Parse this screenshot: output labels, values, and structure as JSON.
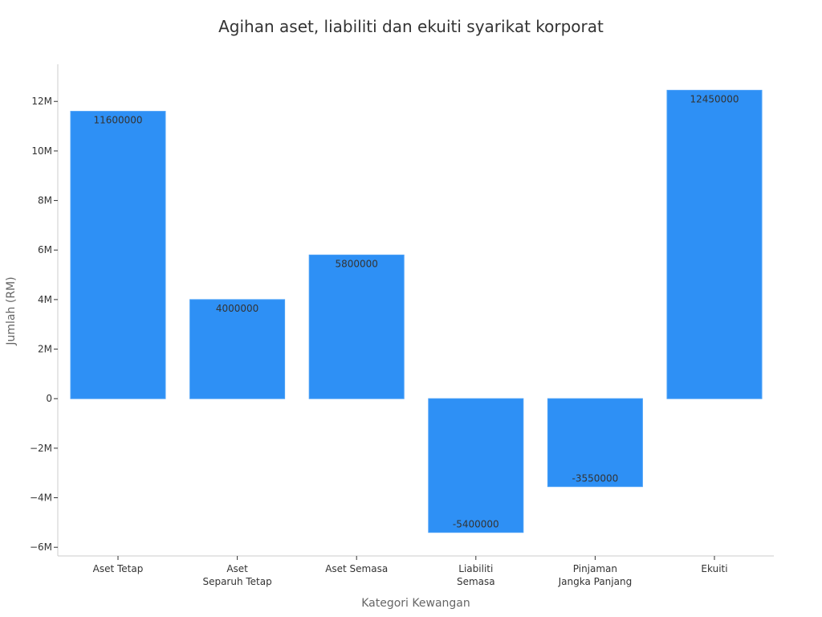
{
  "chart_data": {
    "type": "bar",
    "title": "Agihan aset, liabiliti dan ekuiti syarikat korporat",
    "xlabel": "Kategori Kewangan",
    "ylabel": "Jumlah (RM)",
    "categories": [
      [
        "Aset Tetap"
      ],
      [
        "Aset",
        "Separuh Tetap"
      ],
      [
        "Aset Semasa"
      ],
      [
        "Liabiliti",
        "Semasa"
      ],
      [
        "Pinjaman",
        "Jangka Panjang"
      ],
      [
        "Ekuiti"
      ]
    ],
    "values": [
      11600000,
      4000000,
      5800000,
      -5400000,
      -3550000,
      12450000
    ],
    "data_labels": [
      "11600000",
      "4000000",
      "5800000",
      "-5400000",
      "-3550000",
      "12450000"
    ],
    "ylim": [
      -6350000,
      13500000
    ],
    "yticks": [
      -6000000,
      -4000000,
      -2000000,
      0,
      2000000,
      4000000,
      6000000,
      8000000,
      10000000,
      12000000
    ],
    "ytick_labels": [
      "−6M",
      "−4M",
      "−2M",
      "0",
      "2M",
      "4M",
      "6M",
      "8M",
      "10M",
      "12M"
    ],
    "bar_color": "#2e90f5",
    "grid": false,
    "legend": "none"
  }
}
